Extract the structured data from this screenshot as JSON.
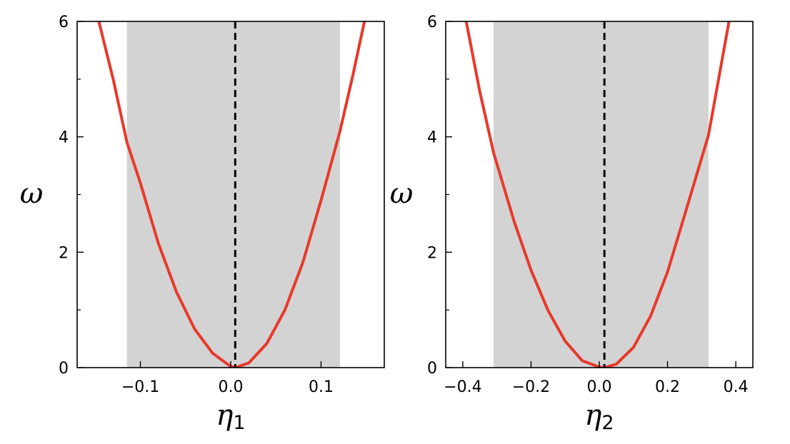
{
  "chart_data": [
    {
      "type": "line",
      "xlabel": "η",
      "xlabel_sub": "1",
      "ylabel": "ω",
      "xlim": [
        -0.17,
        0.17
      ],
      "ylim": [
        0,
        6
      ],
      "xticks": [
        -0.1,
        0.0,
        0.1
      ],
      "xtick_labels": [
        "−0.1",
        "0.0",
        "0.1"
      ],
      "yticks": [
        0,
        2,
        4,
        6
      ],
      "ytick_labels": [
        "0",
        "2",
        "4",
        "6"
      ],
      "grid": false,
      "shaded_band": [
        -0.115,
        0.121
      ],
      "vertical_line_x": 0.005,
      "series": [
        {
          "color": "#e8392a",
          "x": [
            -0.146,
            -0.13,
            -0.115,
            -0.1,
            -0.08,
            -0.06,
            -0.04,
            -0.02,
            0.0,
            0.005,
            0.02,
            0.04,
            0.06,
            0.08,
            0.1,
            0.121,
            0.135,
            0.148
          ],
          "y": [
            6.0,
            4.99,
            3.91,
            3.2,
            2.15,
            1.31,
            0.67,
            0.25,
            0.02,
            0.0,
            0.08,
            0.42,
            1.0,
            1.83,
            2.9,
            4.1,
            5.05,
            6.0
          ]
        }
      ]
    },
    {
      "type": "line",
      "xlabel": "η",
      "xlabel_sub": "2",
      "ylabel": "ω",
      "xlim": [
        -0.45,
        0.45
      ],
      "ylim": [
        0,
        6
      ],
      "xticks": [
        -0.4,
        -0.2,
        0.0,
        0.2,
        0.4
      ],
      "xtick_labels": [
        "−0.4",
        "−0.2",
        "0.0",
        "0.2",
        "0.4"
      ],
      "yticks": [
        0,
        2,
        4,
        6
      ],
      "ytick_labels": [
        "0",
        "2",
        "4",
        "6"
      ],
      "grid": false,
      "shaded_band": [
        -0.31,
        0.32
      ],
      "vertical_line_x": 0.015,
      "series": [
        {
          "color": "#e8392a",
          "x": [
            -0.39,
            -0.35,
            -0.31,
            -0.25,
            -0.2,
            -0.15,
            -0.1,
            -0.05,
            0.0,
            0.015,
            0.05,
            0.1,
            0.15,
            0.2,
            0.25,
            0.32,
            0.35,
            0.38
          ],
          "y": [
            6.0,
            4.78,
            3.73,
            2.54,
            1.69,
            0.99,
            0.46,
            0.12,
            0.01,
            0.0,
            0.06,
            0.35,
            0.89,
            1.66,
            2.64,
            4.03,
            5.01,
            6.0
          ]
        }
      ]
    }
  ]
}
